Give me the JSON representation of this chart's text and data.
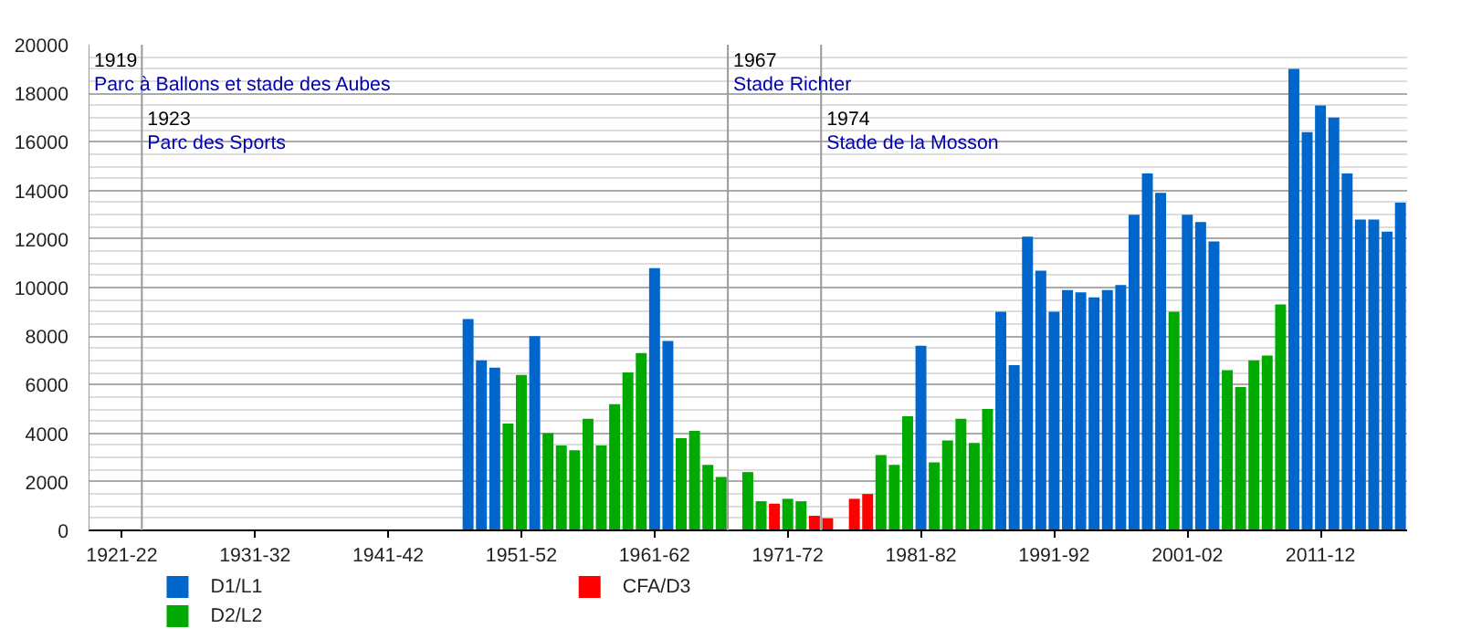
{
  "chart_data": {
    "type": "bar",
    "xlim": [
      "1919-01",
      "2018-01"
    ],
    "xticks": [
      {
        "value": "1921-07",
        "label": "1921-22"
      },
      {
        "value": "1931-07",
        "label": "1931-32"
      },
      {
        "value": "1941-07",
        "label": "1941-42"
      },
      {
        "value": "1951-07",
        "label": "1951-52"
      },
      {
        "value": "1961-07",
        "label": "1961-62"
      },
      {
        "value": "1971-07",
        "label": "1971-72"
      },
      {
        "value": "1981-07",
        "label": "1981-82"
      },
      {
        "value": "1991-07",
        "label": "1991-92"
      },
      {
        "value": "2001-07",
        "label": "2001-02"
      },
      {
        "value": "2011-07",
        "label": "2011-12"
      }
    ],
    "ylim": [
      0,
      20000
    ],
    "yticks": [
      0,
      2000,
      4000,
      6000,
      8000,
      10000,
      12000,
      14000,
      16000,
      18000,
      20000
    ],
    "grid": "y",
    "legend": "bottom left",
    "series": [
      {
        "name": "D1/L1",
        "color": "#0066cc",
        "x": [
          "1947-07",
          "1948-07",
          "1949-07",
          "1952-07",
          "1961-07",
          "1962-07",
          "1981-07",
          "1987-07",
          "1988-07",
          "1989-07",
          "1990-07",
          "1991-07",
          "1992-07",
          "1993-07",
          "1994-07",
          "1995-07",
          "1996-07",
          "1997-07",
          "1998-07",
          "1999-07",
          "2001-07",
          "2002-07",
          "2003-07",
          "2009-07",
          "2010-07",
          "2011-07",
          "2012-07",
          "2013-07",
          "2014-07",
          "2015-07",
          "2016-07",
          "2017-07"
        ],
        "values": [
          8700,
          7000,
          6700,
          8000,
          10800,
          7800,
          7600,
          9000,
          6800,
          12100,
          10700,
          9000,
          9900,
          9800,
          9600,
          9900,
          10100,
          13000,
          14700,
          13900,
          13000,
          12700,
          11900,
          19000,
          16400,
          17500,
          17000,
          14700,
          12800,
          12800,
          12300,
          13500
        ]
      },
      {
        "name": "D2/L2",
        "color": "#00aa00",
        "x": [
          "1950-07",
          "1951-07",
          "1953-07",
          "1954-07",
          "1955-07",
          "1956-07",
          "1957-07",
          "1958-07",
          "1959-07",
          "1960-07",
          "1963-07",
          "1964-07",
          "1965-07",
          "1966-07",
          "1968-07",
          "1969-07",
          "1971-07",
          "1972-07",
          "1978-07",
          "1979-07",
          "1980-07",
          "1982-07",
          "1983-07",
          "1984-07",
          "1985-07",
          "1986-07",
          "2000-07",
          "2004-07",
          "2005-07",
          "2006-07",
          "2007-07",
          "2008-07"
        ],
        "values": [
          4400,
          6400,
          4000,
          3500,
          3300,
          4600,
          3500,
          5200,
          6500,
          7300,
          3800,
          4100,
          2700,
          2200,
          2400,
          1200,
          1300,
          1200,
          3100,
          2700,
          4700,
          2800,
          3700,
          4600,
          3600,
          5000,
          9000,
          6600,
          5900,
          7000,
          7200,
          9300
        ]
      },
      {
        "name": "CFA/D3",
        "color": "#ff0000",
        "x": [
          "1970-07",
          "1973-07",
          "1974-07",
          "1976-07",
          "1977-07"
        ],
        "values": [
          1100,
          600,
          500,
          1300,
          1500
        ]
      }
    ],
    "ref_lines": [
      {
        "axis": "x",
        "value": "1919",
        "label": "1919\nParc à Ballons et stade des Aubes",
        "color": "#999999"
      },
      {
        "axis": "x",
        "value": "1923",
        "label": "1923\nParc des Sports",
        "color": "#999999"
      },
      {
        "axis": "x",
        "value": "1967",
        "label": "1967\nStade Richter",
        "color": "#999999"
      },
      {
        "axis": "x",
        "value": "1974",
        "label": "1974\nStade de la Mosson",
        "color": "#999999"
      }
    ]
  }
}
